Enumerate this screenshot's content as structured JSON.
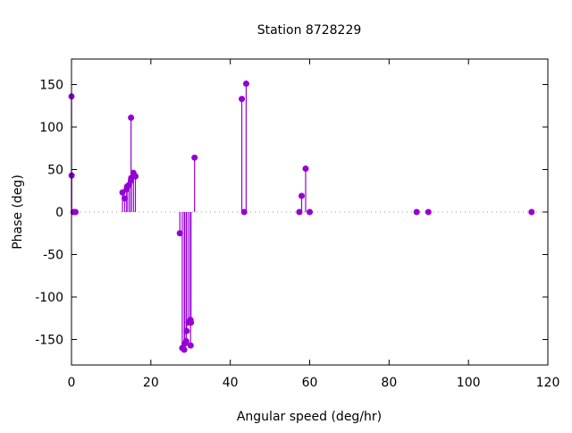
{
  "chart_data": {
    "type": "stem",
    "title": "Station 8728229",
    "xlabel": "Angular speed (deg/hr)",
    "ylabel": "Phase (deg)",
    "xlim": [
      0,
      120
    ],
    "ylim": [
      -180,
      180
    ],
    "xticks": [
      0,
      20,
      40,
      60,
      80,
      100,
      120
    ],
    "yticks": [
      -150,
      -100,
      -50,
      0,
      50,
      100,
      150
    ],
    "color": "#9400d3",
    "points": [
      [
        0.0,
        136
      ],
      [
        0.04,
        43
      ],
      [
        0.5,
        0
      ],
      [
        1.0,
        0
      ],
      [
        12.85,
        23
      ],
      [
        13.4,
        16
      ],
      [
        13.9,
        27
      ],
      [
        14.0,
        30
      ],
      [
        14.5,
        32
      ],
      [
        14.96,
        37
      ],
      [
        15.0,
        111
      ],
      [
        15.04,
        40
      ],
      [
        15.6,
        46
      ],
      [
        16.1,
        42
      ],
      [
        27.3,
        -25
      ],
      [
        27.9,
        -160
      ],
      [
        28.4,
        -162
      ],
      [
        28.5,
        -155
      ],
      [
        28.9,
        -152
      ],
      [
        29.0,
        -140
      ],
      [
        29.5,
        -130
      ],
      [
        29.96,
        -127
      ],
      [
        30.0,
        -157
      ],
      [
        30.1,
        -130
      ],
      [
        31.0,
        64
      ],
      [
        42.9,
        133
      ],
      [
        43.5,
        0
      ],
      [
        44.0,
        151
      ],
      [
        57.4,
        0
      ],
      [
        57.97,
        19
      ],
      [
        58.98,
        51
      ],
      [
        60.0,
        0
      ],
      [
        86.95,
        0
      ],
      [
        89.9,
        0
      ],
      [
        115.9,
        0
      ]
    ]
  }
}
